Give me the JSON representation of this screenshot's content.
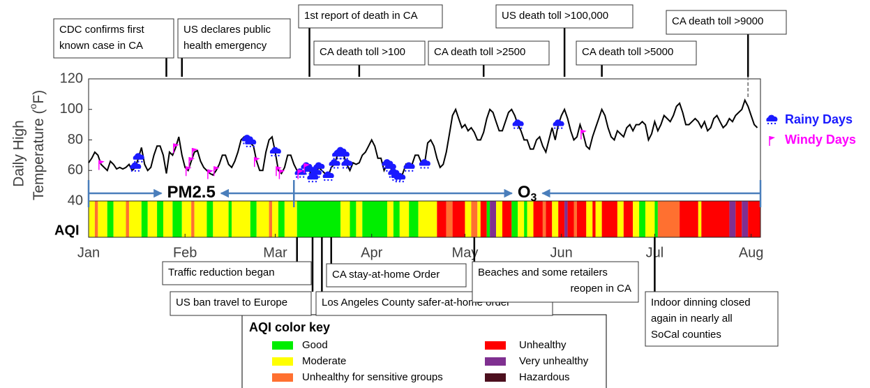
{
  "chart_data": {
    "type": "line",
    "y_label": [
      "Daily High",
      "Temperature (",
      "o",
      "F)"
    ],
    "xlim": [
      1,
      217
    ],
    "ylim": [
      40,
      120
    ],
    "yticks": [
      40,
      60,
      80,
      100,
      120
    ],
    "xticks": [
      {
        "value": 1,
        "label": "Jan"
      },
      {
        "value": 32,
        "label": "Feb"
      },
      {
        "value": 61,
        "label": "Mar"
      },
      {
        "value": 92,
        "label": "Apr"
      },
      {
        "value": 122,
        "label": "May"
      },
      {
        "value": 153,
        "label": "Jun"
      },
      {
        "value": 183,
        "label": "Jul"
      },
      {
        "value": 214,
        "label": "Aug"
      }
    ],
    "color": "#000000",
    "x": [
      1,
      2,
      3,
      4,
      5,
      6,
      7,
      8,
      9,
      10,
      11,
      12,
      13,
      14,
      15,
      16,
      17,
      18,
      19,
      20,
      21,
      22,
      23,
      24,
      25,
      26,
      27,
      28,
      29,
      30,
      31,
      32,
      33,
      34,
      35,
      36,
      37,
      38,
      39,
      40,
      41,
      42,
      43,
      44,
      45,
      46,
      47,
      48,
      49,
      50,
      51,
      52,
      53,
      54,
      55,
      56,
      57,
      58,
      59,
      60,
      61,
      62,
      63,
      64,
      65,
      66,
      67,
      68,
      69,
      70,
      71,
      72,
      73,
      74,
      75,
      76,
      77,
      78,
      79,
      80,
      81,
      82,
      83,
      84,
      85,
      86,
      87,
      88,
      89,
      90,
      91,
      92,
      93,
      94,
      95,
      96,
      97,
      98,
      99,
      100,
      101,
      102,
      103,
      104,
      105,
      106,
      107,
      108,
      109,
      110,
      111,
      112,
      113,
      114,
      115,
      116,
      117,
      118,
      119,
      120,
      121,
      122,
      123,
      124,
      125,
      126,
      127,
      128,
      129,
      130,
      131,
      132,
      133,
      134,
      135,
      136,
      137,
      138,
      139,
      140,
      141,
      142,
      143,
      144,
      145,
      146,
      147,
      148,
      149,
      150,
      151,
      152,
      153,
      154,
      155,
      156,
      157,
      158,
      159,
      160,
      161,
      162,
      163,
      164,
      165,
      166,
      167,
      168,
      169,
      170,
      171,
      172,
      173,
      174,
      175,
      176,
      177,
      178,
      179,
      180,
      181,
      182,
      183,
      184,
      185,
      186,
      187,
      188,
      189,
      190,
      191,
      192,
      193,
      194,
      195,
      196,
      197,
      198,
      199,
      200,
      201,
      202,
      203,
      204,
      205,
      206,
      207,
      208,
      209,
      210,
      211,
      212,
      213,
      214,
      215,
      216
    ],
    "values": [
      65,
      68,
      72,
      70,
      64,
      62,
      60,
      66,
      64,
      61,
      62,
      61,
      62,
      64,
      60,
      62,
      68,
      75,
      64,
      60,
      62,
      70,
      76,
      76,
      70,
      58,
      72,
      70,
      75,
      82,
      70,
      62,
      60,
      66,
      72,
      73,
      66,
      62,
      60,
      58,
      57,
      60,
      64,
      70,
      70,
      64,
      62,
      66,
      72,
      80,
      82,
      80,
      78,
      76,
      66,
      60,
      60,
      72,
      80,
      82,
      72,
      60,
      58,
      62,
      70,
      70,
      64,
      60,
      58,
      58,
      62,
      60,
      55,
      58,
      62,
      60,
      58,
      56,
      62,
      64,
      70,
      72,
      70,
      64,
      60,
      65,
      64,
      65,
      70,
      72,
      76,
      80,
      76,
      68,
      68,
      60,
      64,
      62,
      58,
      56,
      55,
      58,
      64,
      62,
      64,
      70,
      70,
      65,
      64,
      78,
      80,
      76,
      68,
      62,
      64,
      72,
      84,
      96,
      100,
      94,
      88,
      90,
      86,
      88,
      85,
      80,
      80,
      85,
      94,
      100,
      98,
      92,
      86,
      86,
      92,
      98,
      100,
      96,
      90,
      86,
      80,
      80,
      74,
      74,
      80,
      82,
      76,
      72,
      80,
      88,
      80,
      90,
      96,
      100,
      94,
      86,
      80,
      82,
      90,
      84,
      76,
      74,
      82,
      88,
      94,
      100,
      96,
      88,
      82,
      80,
      86,
      84,
      82,
      88,
      90,
      86,
      90,
      90,
      92,
      90,
      80,
      84,
      92,
      86,
      90,
      96,
      94,
      92,
      96,
      102,
      104,
      98,
      90,
      90,
      92,
      94,
      92,
      88,
      92,
      86,
      88,
      94,
      96,
      92,
      88,
      90,
      94,
      92,
      96,
      98,
      100,
      106,
      102,
      96,
      90,
      88
    ],
    "markers": [
      {
        "name": "Rainy Days",
        "color": "#1a1aff",
        "x": [
          16,
          17,
          52,
          53,
          61,
          69,
          71,
          72,
          73,
          74,
          75,
          78,
          80,
          81,
          82,
          83,
          84,
          97,
          98,
          99,
          100,
          101,
          104,
          109,
          139,
          152
        ]
      },
      {
        "name": "Windy Days",
        "color": "#ff00ff",
        "x": [
          5,
          29,
          33,
          34,
          35,
          40,
          42,
          55,
          62,
          63,
          69,
          71,
          160
        ]
      }
    ],
    "periods": [
      {
        "label": [
          "PM2.5"
        ],
        "start": 1,
        "end": 67
      },
      {
        "label": [
          "O",
          "3"
        ],
        "start": 67,
        "end": 217
      }
    ],
    "aqi_label": "AQI",
    "aqi": [
      {
        "start": 1,
        "end": 2,
        "level": 1
      },
      {
        "start": 3,
        "end": 3,
        "level": 2
      },
      {
        "start": 4,
        "end": 6,
        "level": 1
      },
      {
        "start": 7,
        "end": 8,
        "level": 0
      },
      {
        "start": 9,
        "end": 12,
        "level": 1
      },
      {
        "start": 13,
        "end": 13,
        "level": 2
      },
      {
        "start": 14,
        "end": 17,
        "level": 1
      },
      {
        "start": 18,
        "end": 19,
        "level": 0
      },
      {
        "start": 20,
        "end": 22,
        "level": 1
      },
      {
        "start": 23,
        "end": 24,
        "level": 0
      },
      {
        "start": 25,
        "end": 27,
        "level": 1
      },
      {
        "start": 28,
        "end": 30,
        "level": 0
      },
      {
        "start": 31,
        "end": 33,
        "level": 1
      },
      {
        "start": 34,
        "end": 34,
        "level": 2
      },
      {
        "start": 35,
        "end": 38,
        "level": 1
      },
      {
        "start": 39,
        "end": 40,
        "level": 0
      },
      {
        "start": 41,
        "end": 45,
        "level": 1
      },
      {
        "start": 46,
        "end": 46,
        "level": 0
      },
      {
        "start": 47,
        "end": 52,
        "level": 1
      },
      {
        "start": 53,
        "end": 54,
        "level": 0
      },
      {
        "start": 55,
        "end": 58,
        "level": 1
      },
      {
        "start": 59,
        "end": 59,
        "level": 2
      },
      {
        "start": 60,
        "end": 61,
        "level": 1
      },
      {
        "start": 62,
        "end": 63,
        "level": 0
      },
      {
        "start": 64,
        "end": 67,
        "level": 1
      },
      {
        "start": 68,
        "end": 81,
        "level": 0
      },
      {
        "start": 82,
        "end": 84,
        "level": 1
      },
      {
        "start": 85,
        "end": 86,
        "level": 0
      },
      {
        "start": 87,
        "end": 88,
        "level": 1
      },
      {
        "start": 89,
        "end": 96,
        "level": 0
      },
      {
        "start": 97,
        "end": 98,
        "level": 1
      },
      {
        "start": 99,
        "end": 100,
        "level": 0
      },
      {
        "start": 101,
        "end": 103,
        "level": 1
      },
      {
        "start": 104,
        "end": 106,
        "level": 0
      },
      {
        "start": 107,
        "end": 112,
        "level": 1
      },
      {
        "start": 113,
        "end": 115,
        "level": 3
      },
      {
        "start": 116,
        "end": 117,
        "level": 2
      },
      {
        "start": 118,
        "end": 121,
        "level": 3
      },
      {
        "start": 122,
        "end": 123,
        "level": 1
      },
      {
        "start": 124,
        "end": 125,
        "level": 2
      },
      {
        "start": 126,
        "end": 126,
        "level": 1
      },
      {
        "start": 127,
        "end": 128,
        "level": 3
      },
      {
        "start": 129,
        "end": 129,
        "level": 0
      },
      {
        "start": 130,
        "end": 131,
        "level": 4
      },
      {
        "start": 132,
        "end": 133,
        "level": 1
      },
      {
        "start": 134,
        "end": 136,
        "level": 3
      },
      {
        "start": 137,
        "end": 138,
        "level": 0
      },
      {
        "start": 139,
        "end": 140,
        "level": 1
      },
      {
        "start": 141,
        "end": 141,
        "level": 0
      },
      {
        "start": 142,
        "end": 143,
        "level": 1
      },
      {
        "start": 144,
        "end": 146,
        "level": 3
      },
      {
        "start": 147,
        "end": 147,
        "level": 2
      },
      {
        "start": 148,
        "end": 149,
        "level": 3
      },
      {
        "start": 150,
        "end": 151,
        "level": 1
      },
      {
        "start": 152,
        "end": 153,
        "level": 3
      },
      {
        "start": 154,
        "end": 154,
        "level": 4
      },
      {
        "start": 155,
        "end": 156,
        "level": 3
      },
      {
        "start": 157,
        "end": 157,
        "level": 2
      },
      {
        "start": 158,
        "end": 160,
        "level": 3
      },
      {
        "start": 161,
        "end": 162,
        "level": 1
      },
      {
        "start": 163,
        "end": 163,
        "level": 3
      },
      {
        "start": 164,
        "end": 165,
        "level": 1
      },
      {
        "start": 166,
        "end": 170,
        "level": 3
      },
      {
        "start": 171,
        "end": 172,
        "level": 1
      },
      {
        "start": 173,
        "end": 175,
        "level": 3
      },
      {
        "start": 176,
        "end": 177,
        "level": 1
      },
      {
        "start": 178,
        "end": 179,
        "level": 0
      },
      {
        "start": 180,
        "end": 182,
        "level": 1
      },
      {
        "start": 183,
        "end": 183,
        "level": 0
      },
      {
        "start": 184,
        "end": 190,
        "level": 2
      },
      {
        "start": 191,
        "end": 196,
        "level": 3
      },
      {
        "start": 197,
        "end": 197,
        "level": 1
      },
      {
        "start": 198,
        "end": 206,
        "level": 3
      },
      {
        "start": 207,
        "end": 208,
        "level": 4
      },
      {
        "start": 209,
        "end": 210,
        "level": 3
      },
      {
        "start": 211,
        "end": 212,
        "level": 4
      },
      {
        "start": 213,
        "end": 216,
        "level": 3
      }
    ],
    "aqi_key": {
      "title": "AQI color key",
      "levels": [
        {
          "name": "Good",
          "color": "#00ee00"
        },
        {
          "name": "Moderate",
          "color": "#ffff00"
        },
        {
          "name": "Unhealthy for sensitive groups",
          "color": "#ff7030"
        },
        {
          "name": "Unhealthy",
          "color": "#ff0000"
        },
        {
          "name": "Very unhealthy",
          "color": "#7f3090"
        },
        {
          "name": "Hazardous",
          "color": "#4c0f1e"
        }
      ]
    },
    "annotations_top": [
      {
        "lines": [
          "CDC confirms first",
          "known case in CA"
        ],
        "x": 26
      },
      {
        "lines": [
          "US declares public",
          "health emergency"
        ],
        "x": 31
      },
      {
        "lines": [
          "1st report of death in CA"
        ],
        "x": 72
      },
      {
        "lines": [
          "CA death toll >100"
        ],
        "x": 88
      },
      {
        "lines": [
          "CA death toll >2500"
        ],
        "x": 128
      },
      {
        "lines": [
          "US death toll >100,000"
        ],
        "x": 154
      },
      {
        "lines": [
          "CA death toll >5000"
        ],
        "x": 166
      },
      {
        "lines": [
          "CA death toll >9000"
        ],
        "x": 213
      }
    ],
    "annotations_bottom": [
      {
        "lines": [
          "Traffic reduction began"
        ],
        "x": 68
      },
      {
        "lines": [
          "US ban travel to Europe"
        ],
        "x": 73
      },
      {
        "lines": [
          "CA stay-at-home Order"
        ],
        "x": 79
      },
      {
        "lines": [
          "Los Angeles County safer-at-home order"
        ],
        "x": 76
      },
      {
        "lines": [
          "Beaches and some retailers",
          "reopen in CA"
        ],
        "x": 125
      },
      {
        "lines": [
          "Indoor dinning closed",
          "again in nearly all",
          "SoCal counties"
        ],
        "x": 183
      }
    ]
  }
}
